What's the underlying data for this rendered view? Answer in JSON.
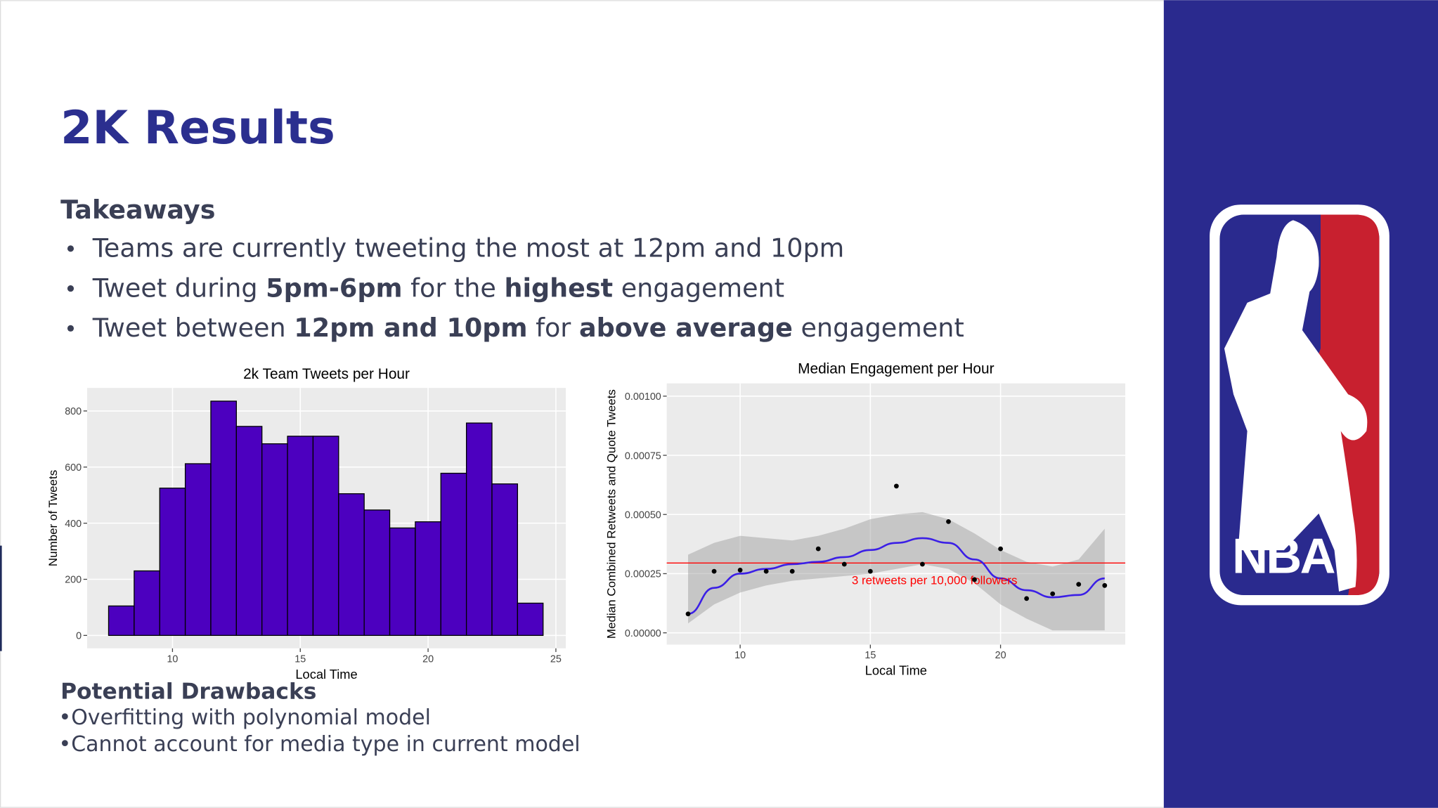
{
  "header": {
    "title": "2K Results"
  },
  "takeaways": {
    "heading": "Takeaways",
    "items": [
      [
        {
          "text": "Teams are currently tweeting the most at 12pm and 10pm"
        }
      ],
      [
        {
          "text": "Tweet during "
        },
        {
          "text": "5pm-6pm",
          "bold": true
        },
        {
          "text": " for the "
        },
        {
          "text": "highest",
          "bold": true
        },
        {
          "text": " engagement"
        }
      ],
      [
        {
          "text": "Tweet between "
        },
        {
          "text": "12pm and 10pm",
          "bold": true
        },
        {
          "text": " for "
        },
        {
          "text": "above average",
          "bold": true
        },
        {
          "text": " engagement"
        }
      ]
    ]
  },
  "drawbacks": {
    "heading": "Potential Drawbacks",
    "items": [
      "•Overfitting with polynomial model",
      "•Cannot account for media type in current model"
    ]
  },
  "logo": {
    "text": "NBA"
  },
  "chart_data": [
    {
      "type": "histogram",
      "title": "2k Team Tweets per Hour",
      "x_label": "Local Time",
      "y_label": "Number of Tweets",
      "bins": [
        7.5,
        8.5,
        9.5,
        10.5,
        11.5,
        12.5,
        13.5,
        14.5,
        15.5,
        16.5,
        17.5,
        18.5,
        19.5,
        20.5,
        21.5,
        22.5,
        23.5,
        24.5
      ],
      "counts": [
        105,
        230,
        525,
        612,
        835,
        745,
        683,
        710,
        710,
        505,
        447,
        383,
        405,
        578,
        757,
        540,
        115
      ],
      "color": "#4c00bf",
      "xlim": [
        6.66,
        25.39
      ],
      "ylim": [
        -46,
        882
      ],
      "xticks": [
        10,
        15,
        20,
        25
      ],
      "yticks": [
        0,
        200,
        400,
        600,
        800
      ],
      "grid": true
    },
    {
      "type": "scatter",
      "title": "Median Engagement per Hour",
      "x_label": "Local Time",
      "y_label": "Median Combined Retweets and Quote Tweets",
      "x": [
        8,
        9,
        10,
        11,
        12,
        13,
        14,
        15,
        16,
        17,
        18,
        19,
        20,
        21,
        22,
        23,
        24
      ],
      "values": [
        8e-05,
        0.00026,
        0.000265,
        0.00026,
        0.00026,
        0.000355,
        0.00029,
        0.00026,
        0.00062,
        0.00029,
        0.00047,
        0.000225,
        0.000355,
        0.000145,
        0.000165,
        0.000205,
        0.0002
      ],
      "color": "#000000",
      "fit": {
        "color": "#3b1fe6",
        "values": [
          8e-05,
          0.00019,
          0.00025,
          0.00027,
          0.00029,
          0.0003,
          0.00032,
          0.00035,
          0.00038,
          0.0004,
          0.00038,
          0.00031,
          0.00023,
          0.00018,
          0.00015,
          0.00016,
          0.00023
        ],
        "lower": [
          4e-05,
          0.00012,
          0.00017,
          0.0002,
          0.00022,
          0.00023,
          0.00024,
          0.00025,
          0.00027,
          0.00029,
          0.00027,
          0.00021,
          0.00012,
          6e-05,
          1e-05,
          1e-05,
          1e-05
        ],
        "upper": [
          0.00033,
          0.00038,
          0.00041,
          0.0004,
          0.00039,
          0.00041,
          0.00044,
          0.00048,
          0.0005,
          0.00051,
          0.00048,
          0.00042,
          0.00035,
          0.0003,
          0.00028,
          0.00031,
          0.00044
        ]
      },
      "hline": 0.000295,
      "hline_color": "#ff0000",
      "annotation": "3 retweets per 10,000 followers",
      "xlim": [
        7.18,
        24.79
      ],
      "ylim": [
        -5e-05,
        0.001054
      ],
      "xticks": [
        10,
        15,
        20
      ],
      "yticks": [
        {
          "value": 0,
          "label": "0.00000"
        },
        {
          "value": 0.00025,
          "label": "0.00025"
        },
        {
          "value": 0.0005,
          "label": "0.00050"
        },
        {
          "value": 0.00075,
          "label": "0.00075"
        },
        {
          "value": 0.001,
          "label": "0.00100"
        }
      ],
      "grid": true
    }
  ]
}
